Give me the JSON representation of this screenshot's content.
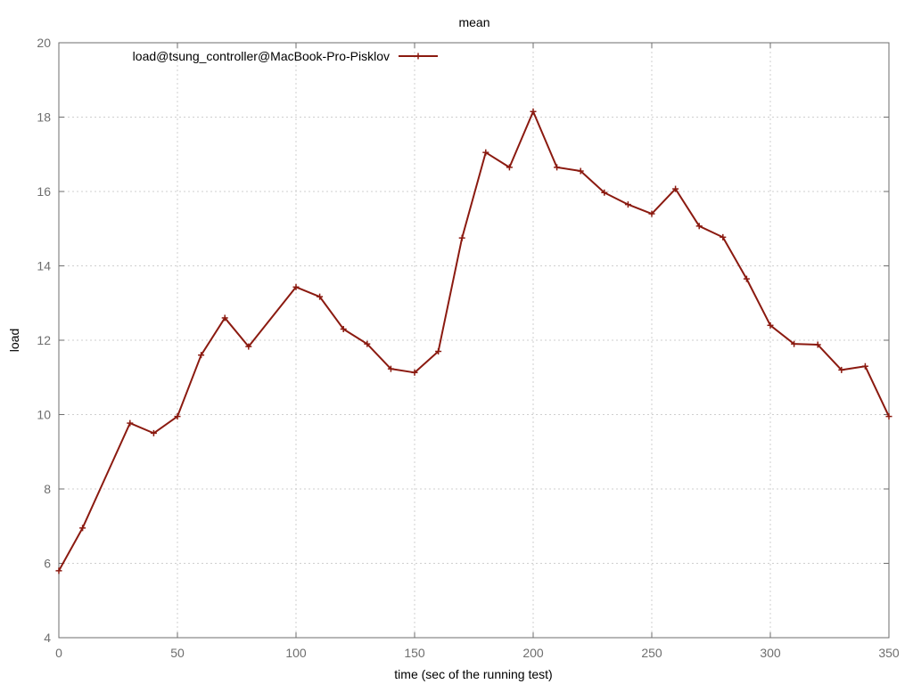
{
  "chart_data": {
    "type": "line",
    "title": "mean",
    "xlabel": "time (sec of the running test)",
    "ylabel": "load",
    "xlim": [
      0,
      350
    ],
    "ylim": [
      4,
      20
    ],
    "xticks": [
      0,
      50,
      100,
      150,
      200,
      250,
      300,
      350
    ],
    "yticks": [
      4,
      6,
      8,
      10,
      12,
      14,
      16,
      18,
      20
    ],
    "grid": true,
    "legend_position": "top-left",
    "series": [
      {
        "name": "load@tsung_controller@MacBook-Pro-Pisklov",
        "color": "#8b1a10",
        "marker": "plus",
        "points": [
          {
            "x": 0,
            "y": 5.8
          },
          {
            "x": 10,
            "y": 6.95
          },
          {
            "x": 30,
            "y": 9.77
          },
          {
            "x": 40,
            "y": 9.5
          },
          {
            "x": 50,
            "y": 9.95
          },
          {
            "x": 60,
            "y": 11.6
          },
          {
            "x": 70,
            "y": 12.6
          },
          {
            "x": 80,
            "y": 11.83
          },
          {
            "x": 100,
            "y": 13.43
          },
          {
            "x": 110,
            "y": 13.17
          },
          {
            "x": 120,
            "y": 12.3
          },
          {
            "x": 130,
            "y": 11.9
          },
          {
            "x": 140,
            "y": 11.23
          },
          {
            "x": 150,
            "y": 11.13
          },
          {
            "x": 160,
            "y": 11.7
          },
          {
            "x": 170,
            "y": 14.75
          },
          {
            "x": 180,
            "y": 17.05
          },
          {
            "x": 190,
            "y": 16.65
          },
          {
            "x": 200,
            "y": 18.15
          },
          {
            "x": 210,
            "y": 16.65
          },
          {
            "x": 220,
            "y": 16.55
          },
          {
            "x": 230,
            "y": 15.97
          },
          {
            "x": 240,
            "y": 15.65
          },
          {
            "x": 250,
            "y": 15.4
          },
          {
            "x": 260,
            "y": 16.07
          },
          {
            "x": 270,
            "y": 15.07
          },
          {
            "x": 280,
            "y": 14.77
          },
          {
            "x": 290,
            "y": 13.65
          },
          {
            "x": 300,
            "y": 12.4
          },
          {
            "x": 310,
            "y": 11.9
          },
          {
            "x": 320,
            "y": 11.88
          },
          {
            "x": 330,
            "y": 11.2
          },
          {
            "x": 340,
            "y": 11.3
          },
          {
            "x": 350,
            "y": 9.95
          }
        ]
      }
    ]
  }
}
